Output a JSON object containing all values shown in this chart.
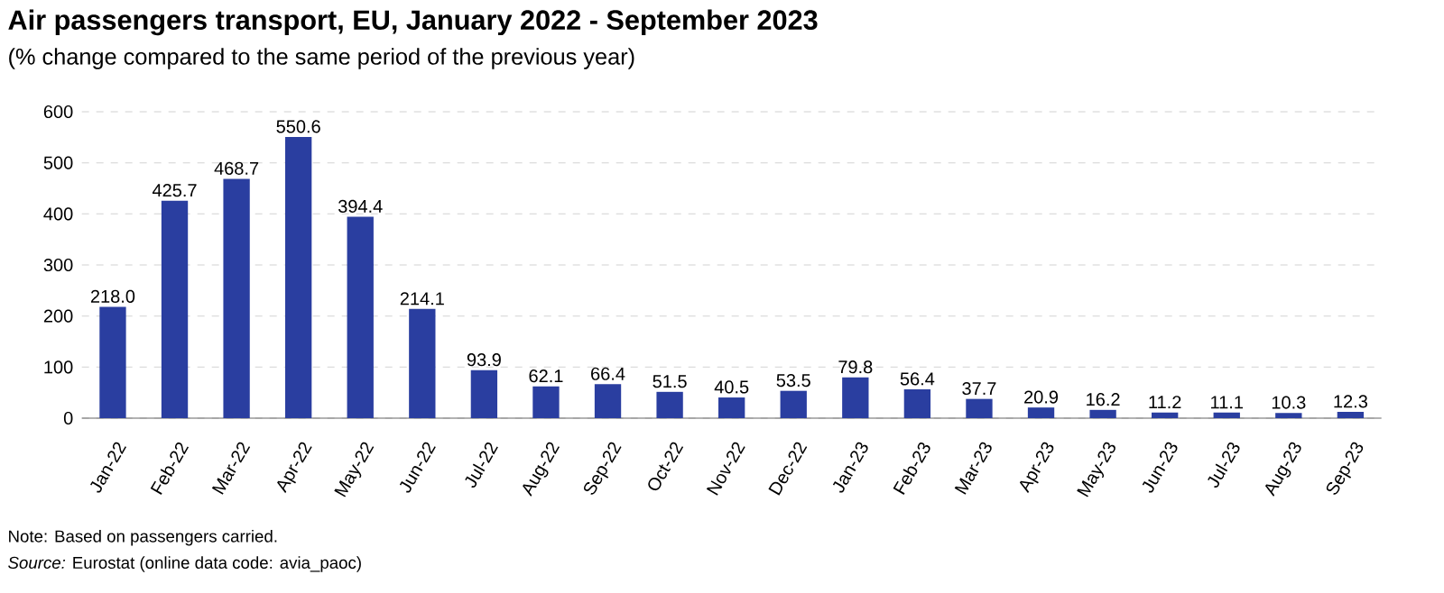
{
  "chart_data": {
    "type": "bar",
    "title": "Air passengers transport, EU, January 2022 - September 2023",
    "subtitle": "(% change compared to the same period of the previous year)",
    "categories": [
      "Jan-22",
      "Feb-22",
      "Mar-22",
      "Apr-22",
      "May-22",
      "Jun-22",
      "Jul-22",
      "Aug-22",
      "Sep-22",
      "Oct-22",
      "Nov-22",
      "Dec-22",
      "Jan-23",
      "Feb-23",
      "Mar-23",
      "Apr-23",
      "May-23",
      "Jun-23",
      "Jul-23",
      "Aug-23",
      "Sep-23"
    ],
    "values": [
      218.0,
      425.7,
      468.7,
      550.6,
      394.4,
      214.1,
      93.9,
      62.1,
      66.4,
      51.5,
      40.5,
      53.5,
      79.8,
      56.4,
      37.7,
      20.9,
      16.2,
      11.2,
      11.1,
      10.3,
      12.3
    ],
    "value_labels": [
      "218.0",
      "425.7",
      "468.7",
      "550.6",
      "394.4",
      "214.1",
      "93.9",
      "62.1",
      "66.4",
      "51.5",
      "40.5",
      "53.5",
      "79.8",
      "56.4",
      "37.7",
      "20.9",
      "16.2",
      "11.2",
      "11.1",
      "10.3",
      "12.3"
    ],
    "color": "#2a3ea0",
    "ylim": [
      0,
      600
    ],
    "yticks": [
      0,
      100,
      200,
      300,
      400,
      500,
      600
    ],
    "grid": "y",
    "annotations": [
      "Note: Based on passengers carried.",
      "*Source:* Eurostat (online data code: avia_paoc)"
    ]
  }
}
